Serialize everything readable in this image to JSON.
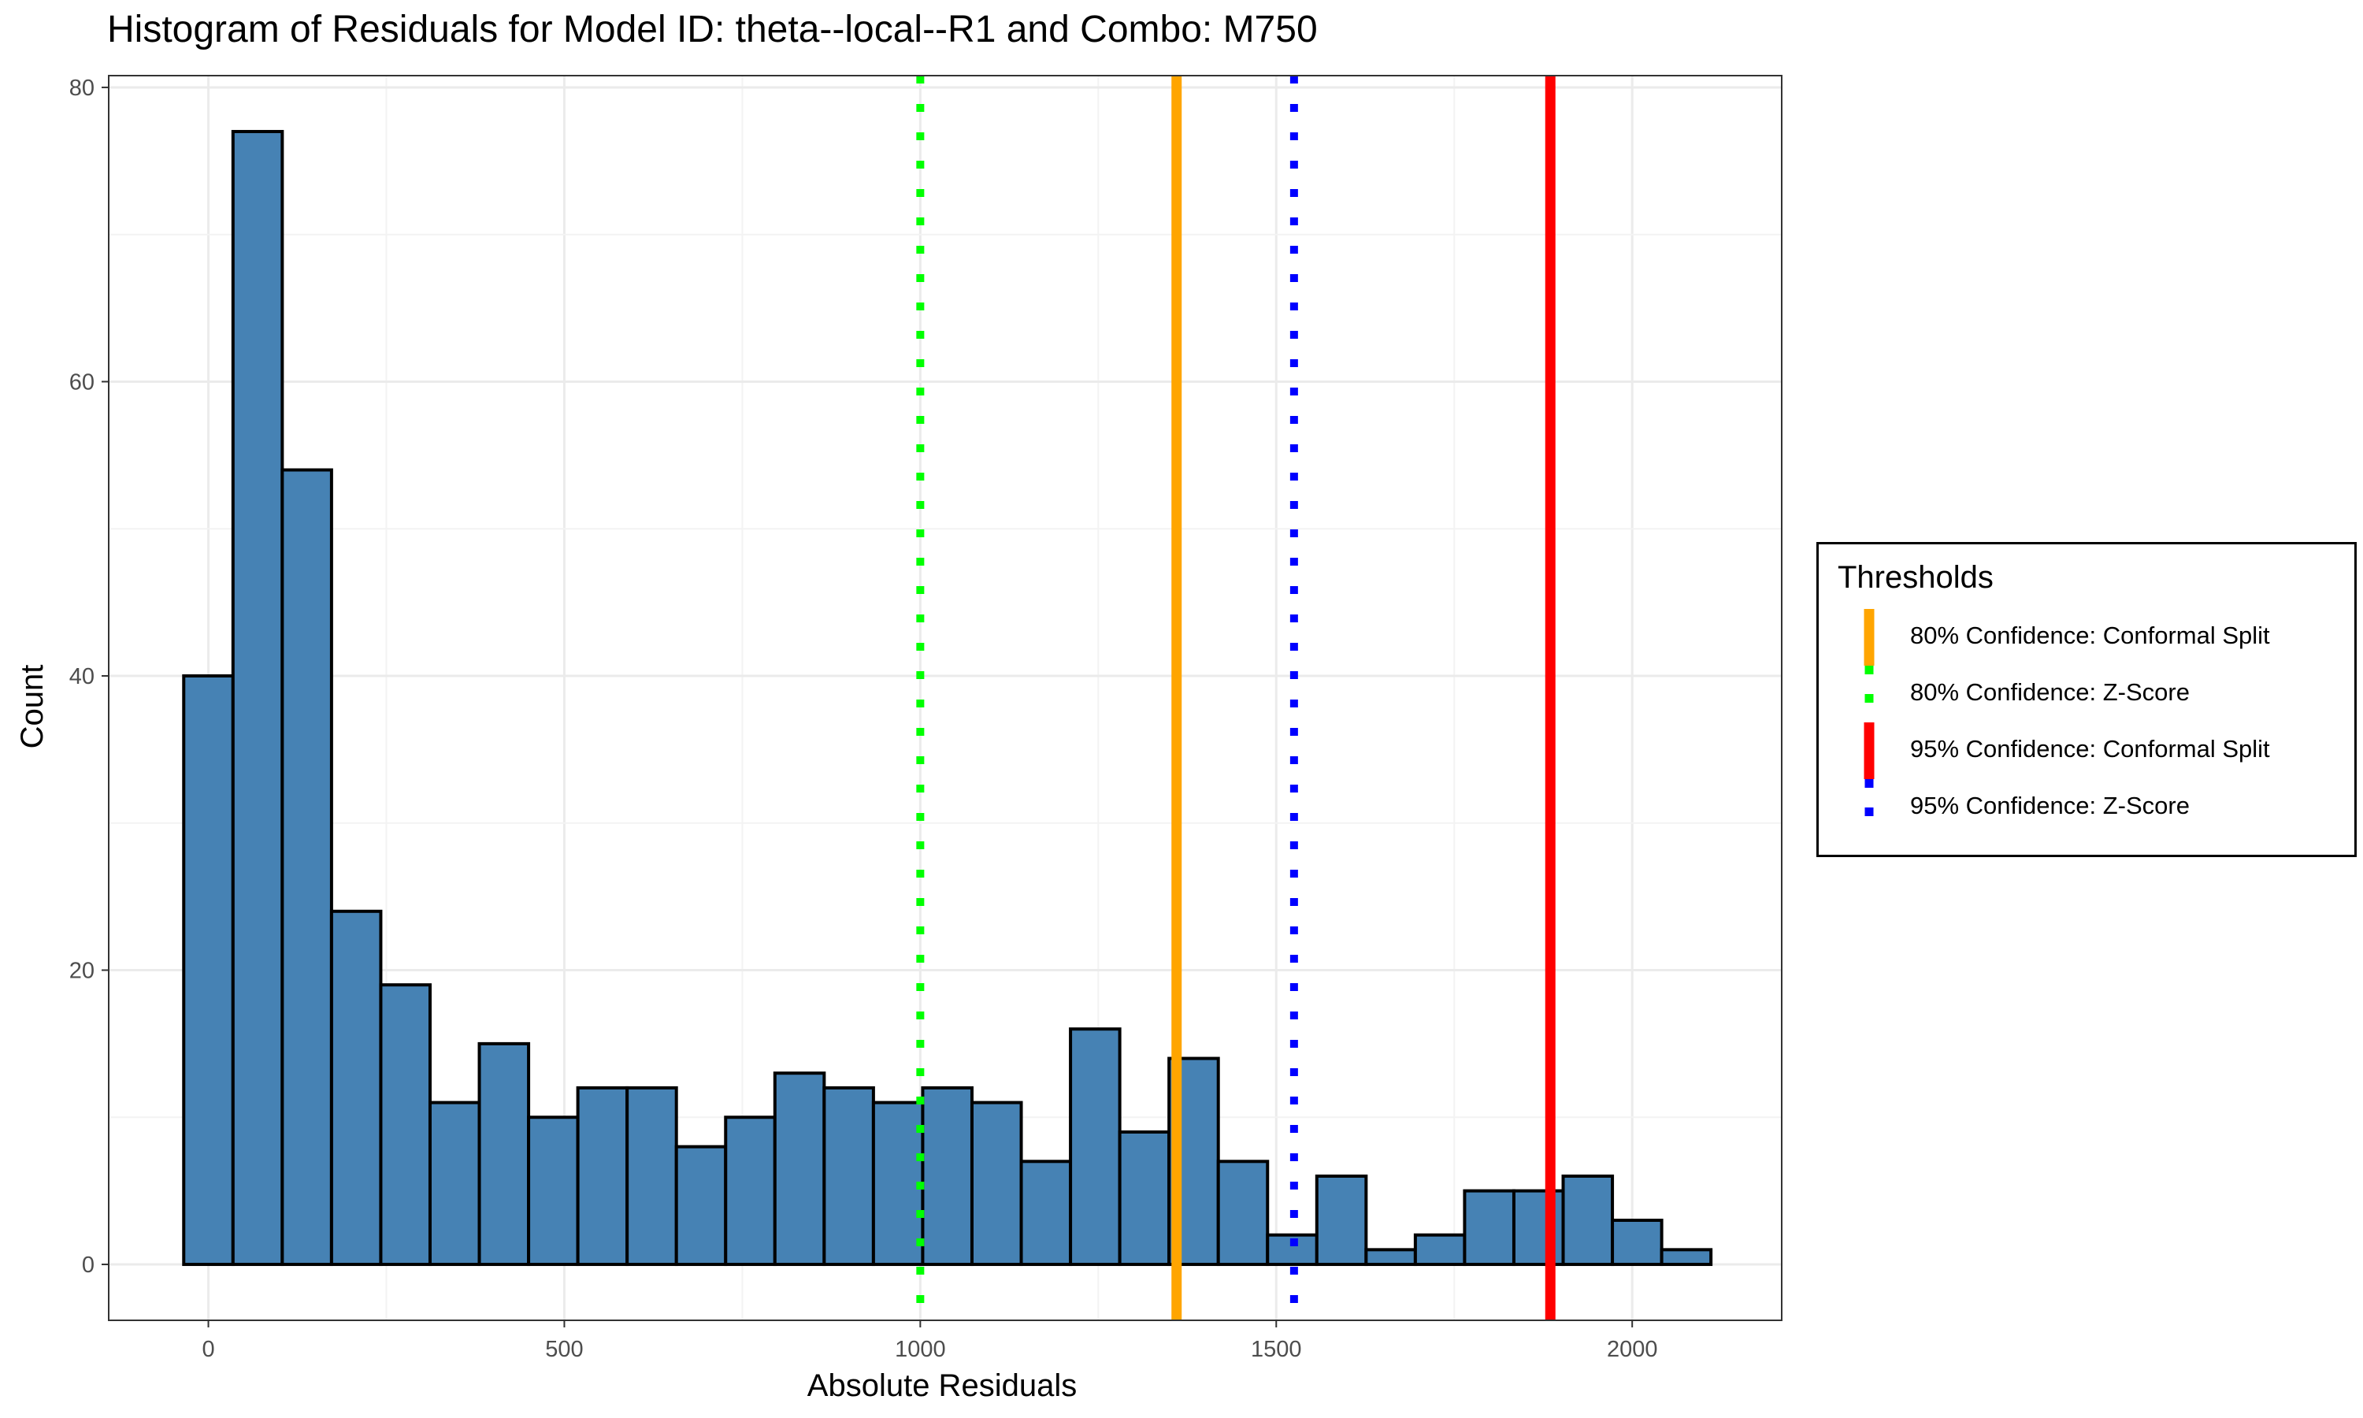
{
  "chart_data": {
    "type": "bar",
    "title": "Histogram of Residuals for Model ID: theta--local--R1 and Combo: M750",
    "xlabel": "Absolute Residuals",
    "ylabel": "Count",
    "xlim": [
      -140,
      2210
    ],
    "ylim": [
      -3.8,
      80.8
    ],
    "x_ticks": [
      0,
      500,
      1000,
      1500,
      2000
    ],
    "y_ticks": [
      0,
      20,
      40,
      60,
      80
    ],
    "grid": true,
    "bin_width": 69.2,
    "bins": [
      {
        "x0": -34.6,
        "x1": 34.6,
        "count": 40
      },
      {
        "x0": 34.6,
        "x1": 103.8,
        "count": 77
      },
      {
        "x0": 103.8,
        "x1": 173.0,
        "count": 54
      },
      {
        "x0": 173.0,
        "x1": 242.2,
        "count": 24
      },
      {
        "x0": 242.2,
        "x1": 311.4,
        "count": 19
      },
      {
        "x0": 311.4,
        "x1": 380.6,
        "count": 11
      },
      {
        "x0": 380.6,
        "x1": 449.8,
        "count": 15
      },
      {
        "x0": 449.8,
        "x1": 519.0,
        "count": 10
      },
      {
        "x0": 519.0,
        "x1": 588.2,
        "count": 12
      },
      {
        "x0": 588.2,
        "x1": 657.4,
        "count": 12
      },
      {
        "x0": 657.4,
        "x1": 726.6,
        "count": 8
      },
      {
        "x0": 726.6,
        "x1": 795.8,
        "count": 10
      },
      {
        "x0": 795.8,
        "x1": 865.0,
        "count": 13
      },
      {
        "x0": 865.0,
        "x1": 934.2,
        "count": 12
      },
      {
        "x0": 934.2,
        "x1": 1003.4,
        "count": 11
      },
      {
        "x0": 1003.4,
        "x1": 1072.6,
        "count": 12
      },
      {
        "x0": 1072.6,
        "x1": 1141.8,
        "count": 11
      },
      {
        "x0": 1141.8,
        "x1": 1211.0,
        "count": 7
      },
      {
        "x0": 1211.0,
        "x1": 1280.2,
        "count": 16
      },
      {
        "x0": 1280.2,
        "x1": 1349.4,
        "count": 9
      },
      {
        "x0": 1349.4,
        "x1": 1418.6,
        "count": 14
      },
      {
        "x0": 1418.6,
        "x1": 1487.8,
        "count": 7
      },
      {
        "x0": 1487.8,
        "x1": 1557.0,
        "count": 2
      },
      {
        "x0": 1557.0,
        "x1": 1626.2,
        "count": 6
      },
      {
        "x0": 1626.2,
        "x1": 1695.4,
        "count": 1
      },
      {
        "x0": 1695.4,
        "x1": 1764.6,
        "count": 2
      },
      {
        "x0": 1764.6,
        "x1": 1833.8,
        "count": 5
      },
      {
        "x0": 1833.8,
        "x1": 1903.0,
        "count": 5
      },
      {
        "x0": 1903.0,
        "x1": 1972.2,
        "count": 6
      },
      {
        "x0": 1972.2,
        "x1": 2041.4,
        "count": 3
      },
      {
        "x0": 2041.4,
        "x1": 2110.6,
        "count": 1
      }
    ],
    "bar_fill": "#4682b4",
    "bar_outline": "#000000",
    "thresholds": [
      {
        "name": "80% Confidence: Conformal Split",
        "x": 1360,
        "color": "#ffa500",
        "style": "solid"
      },
      {
        "name": "80% Confidence: Z-Score",
        "x": 1000,
        "color": "#00ff00",
        "style": "dotted"
      },
      {
        "name": "95% Confidence: Conformal Split",
        "x": 1885,
        "color": "#ff0000",
        "style": "solid"
      },
      {
        "name": "95% Confidence: Z-Score",
        "x": 1525,
        "color": "#0000ff",
        "style": "dotted"
      }
    ],
    "legend": {
      "title": "Thresholds",
      "position": "right"
    }
  }
}
